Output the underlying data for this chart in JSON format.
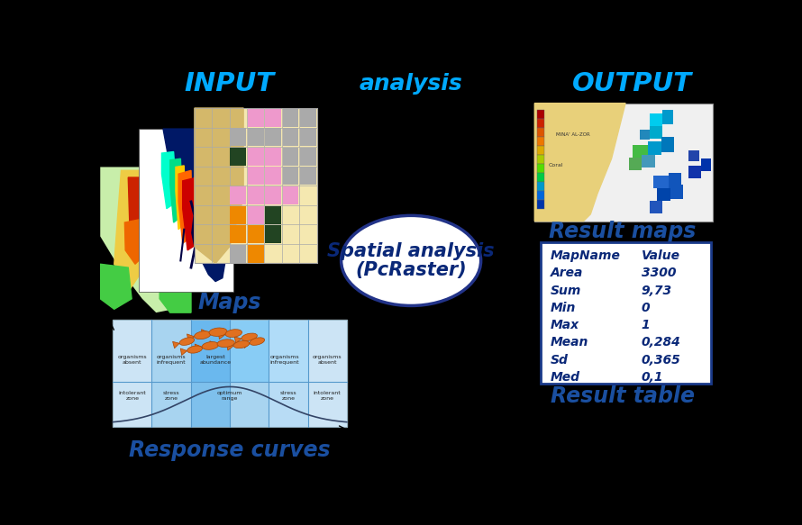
{
  "background_color": "#000000",
  "title_input": "INPUT",
  "title_output": "OUTPUT",
  "title_analysis": "analysis",
  "ellipse_text1": "Spatial analysis",
  "ellipse_text2": "(PcRaster)",
  "maps_label": "Maps",
  "response_label": "Response curves",
  "result_maps_label": "Result maps",
  "result_table_label": "Result table",
  "table_headers": [
    "MapName",
    "Value"
  ],
  "table_rows": [
    [
      "Area",
      "3300"
    ],
    [
      "Sum",
      "9,73"
    ],
    [
      "Min",
      "0"
    ],
    [
      "Max",
      "1"
    ],
    [
      "Mean",
      "0,284"
    ],
    [
      "Sd",
      "0,365"
    ],
    [
      "Med",
      "0,1"
    ]
  ],
  "label_color": "#1a4fa0",
  "header_color": "#0a2878",
  "title_color": "#00aaff",
  "ellipse_text_color": "#0a2878",
  "table_border_color": "#1a3a8a",
  "result_maps_label_color": "#1a4fa0",
  "result_table_label_color": "#1a4fa0"
}
